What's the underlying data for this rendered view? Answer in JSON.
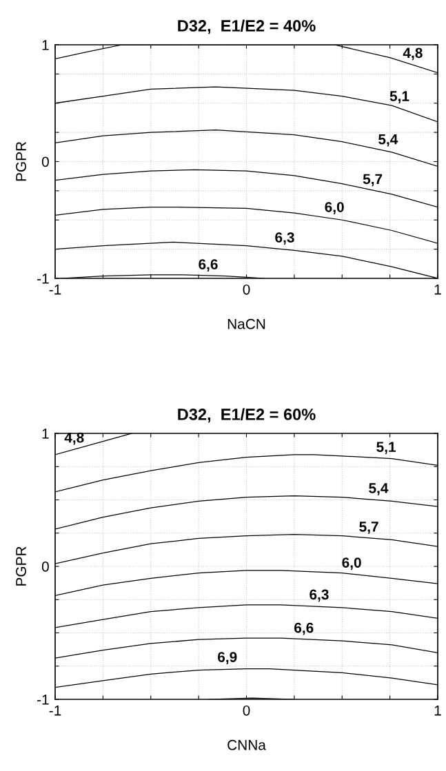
{
  "chart_data": [
    {
      "type": "line",
      "title": "D32,  E1/E2 = 40%",
      "xlabel": "NaCN",
      "ylabel": "PGPR",
      "xlim": [
        -1,
        1
      ],
      "ylim": [
        -1,
        1
      ],
      "xticks": [
        -1,
        {
          "value": -0.75,
          "label": null
        },
        {
          "value": -0.5,
          "label": null
        },
        {
          "value": -0.25,
          "label": null
        },
        0,
        {
          "value": 0.25,
          "label": null
        },
        {
          "value": 0.5,
          "label": null
        },
        {
          "value": 0.75,
          "label": null
        },
        1
      ],
      "yticks": [
        -1,
        {
          "value": -0.75,
          "label": null
        },
        {
          "value": -0.5,
          "label": null
        },
        {
          "value": -0.25,
          "label": null
        },
        0,
        {
          "value": 0.25,
          "label": null
        },
        {
          "value": 0.5,
          "label": null
        },
        {
          "value": 0.75,
          "label": null
        },
        1
      ],
      "grid": true,
      "legend": false,
      "marker": "none",
      "line_style": "solid",
      "series": [
        {
          "color": "#000000",
          "x": [
            -1,
            -0.83,
            -0.65,
            0.46,
            0.75,
            1
          ],
          "values": [
            0.88,
            0.94,
            1,
            1,
            0.89,
            0.76
          ]
        },
        {
          "color": "#000000",
          "x": [
            -1,
            -0.75,
            -0.5,
            -0.16,
            0.25,
            0.5,
            0.76,
            1
          ],
          "values": [
            0.5,
            0.56,
            0.62,
            0.64,
            0.61,
            0.56,
            0.48,
            0.34
          ]
        },
        {
          "color": "#000000",
          "x": [
            -1,
            -0.75,
            -0.5,
            -0.16,
            0.25,
            0.5,
            0.76,
            1
          ],
          "values": [
            0.16,
            0.22,
            0.25,
            0.27,
            0.23,
            0.17,
            0.08,
            -0.04
          ]
        },
        {
          "color": "#000000",
          "x": [
            -1,
            -0.75,
            -0.5,
            -0.27,
            0,
            0.25,
            0.5,
            0.76,
            1
          ],
          "values": [
            -0.16,
            -0.11,
            -0.08,
            -0.07,
            -0.08,
            -0.12,
            -0.19,
            -0.28,
            -0.39
          ]
        },
        {
          "color": "#000000",
          "x": [
            -1,
            -0.75,
            -0.5,
            -0.36,
            0,
            0.25,
            0.5,
            0.76,
            1
          ],
          "values": [
            -0.46,
            -0.41,
            -0.39,
            -0.39,
            -0.4,
            -0.44,
            -0.5,
            -0.59,
            -0.7
          ]
        },
        {
          "color": "#000000",
          "x": [
            -1,
            -0.75,
            -0.38,
            0,
            0.25,
            0.5,
            0.76,
            1
          ],
          "values": [
            -0.75,
            -0.72,
            -0.69,
            -0.72,
            -0.76,
            -0.81,
            -0.9,
            -1
          ]
        },
        {
          "color": "#000000",
          "x": [
            -0.97,
            -0.75,
            -0.5,
            -0.33,
            -0.11,
            0,
            0.09
          ],
          "values": [
            -1,
            -0.98,
            -0.97,
            -0.97,
            -0.98,
            -0.99,
            -1
          ]
        }
      ],
      "annotations": [
        {
          "text": "4,8",
          "x": 0.87,
          "y": 0.83
        },
        {
          "text": "5,1",
          "x": 0.8,
          "y": 0.46
        },
        {
          "text": "5,4",
          "x": 0.74,
          "y": 0.09
        },
        {
          "text": "5,7",
          "x": 0.66,
          "y": -0.25
        },
        {
          "text": "6,0",
          "x": 0.46,
          "y": -0.49
        },
        {
          "text": "6,3",
          "x": 0.2,
          "y": -0.75
        },
        {
          "text": "6,6",
          "x": -0.2,
          "y": -0.98
        }
      ]
    },
    {
      "type": "line",
      "title": "D32,  E1/E2 = 60%",
      "xlabel": "CNNa",
      "ylabel": "PGPR",
      "xlim": [
        -1,
        1
      ],
      "ylim": [
        -1,
        1
      ],
      "xticks": [
        -1,
        {
          "value": -0.75,
          "label": null
        },
        {
          "value": -0.5,
          "label": null
        },
        {
          "value": -0.25,
          "label": null
        },
        0,
        {
          "value": 0.25,
          "label": null
        },
        {
          "value": 0.5,
          "label": null
        },
        {
          "value": 0.75,
          "label": null
        },
        1
      ],
      "yticks": [
        -1,
        {
          "value": -0.75,
          "label": null
        },
        {
          "value": -0.5,
          "label": null
        },
        {
          "value": -0.25,
          "label": null
        },
        0,
        {
          "value": 0.25,
          "label": null
        },
        {
          "value": 0.5,
          "label": null
        },
        {
          "value": 0.75,
          "label": null
        },
        1
      ],
      "grid": true,
      "legend": false,
      "marker": "none",
      "line_style": "solid",
      "series": [
        {
          "color": "#000000",
          "x": [
            -1,
            -0.75,
            -0.6
          ],
          "values": [
            0.84,
            0.94,
            1
          ]
        },
        {
          "color": "#000000",
          "x": [
            -1,
            -0.75,
            -0.5,
            -0.25,
            0,
            0.25,
            0.35,
            0.5,
            0.76,
            1
          ],
          "values": [
            0.56,
            0.65,
            0.72,
            0.78,
            0.82,
            0.84,
            0.84,
            0.83,
            0.81,
            0.76
          ]
        },
        {
          "color": "#000000",
          "x": [
            -1,
            -0.75,
            -0.5,
            -0.25,
            0,
            0.25,
            0.5,
            0.76,
            1
          ],
          "values": [
            0.28,
            0.37,
            0.44,
            0.49,
            0.52,
            0.53,
            0.52,
            0.49,
            0.45
          ]
        },
        {
          "color": "#000000",
          "x": [
            -1,
            -0.75,
            -0.5,
            -0.25,
            0,
            0.25,
            0.5,
            0.76,
            1
          ],
          "values": [
            0.02,
            0.1,
            0.17,
            0.21,
            0.23,
            0.24,
            0.23,
            0.2,
            0.15
          ]
        },
        {
          "color": "#000000",
          "x": [
            -1,
            -0.75,
            -0.5,
            -0.25,
            0,
            0.18,
            0.5,
            0.76,
            1
          ],
          "values": [
            -0.22,
            -0.14,
            -0.09,
            -0.05,
            -0.03,
            -0.03,
            -0.05,
            -0.09,
            -0.13
          ]
        },
        {
          "color": "#000000",
          "x": [
            -1,
            -0.75,
            -0.5,
            -0.25,
            0,
            0.18,
            0.5,
            0.76,
            1
          ],
          "values": [
            -0.46,
            -0.4,
            -0.34,
            -0.31,
            -0.29,
            -0.29,
            -0.31,
            -0.34,
            -0.39
          ]
        },
        {
          "color": "#000000",
          "x": [
            -1,
            -0.75,
            -0.5,
            -0.25,
            0,
            0.18,
            0.5,
            0.76,
            1
          ],
          "values": [
            -0.69,
            -0.63,
            -0.58,
            -0.55,
            -0.54,
            -0.54,
            -0.56,
            -0.59,
            -0.65
          ]
        },
        {
          "color": "#000000",
          "x": [
            -1,
            -0.75,
            -0.5,
            -0.25,
            0,
            0.12,
            0.25,
            0.5,
            0.76,
            1
          ],
          "values": [
            -0.91,
            -0.86,
            -0.81,
            -0.78,
            -0.77,
            -0.77,
            -0.78,
            -0.8,
            -0.84,
            -0.89
          ]
        },
        {
          "color": "#000000",
          "x": [
            -0.2,
            0.03,
            0.25
          ],
          "values": [
            -1,
            -0.99,
            -1
          ]
        }
      ],
      "annotations": [
        {
          "text": "4,8",
          "x": -0.9,
          "y": 0.88
        },
        {
          "text": "5,1",
          "x": 0.73,
          "y": 0.81
        },
        {
          "text": "5,4",
          "x": 0.69,
          "y": 0.5
        },
        {
          "text": "5,7",
          "x": 0.64,
          "y": 0.21
        },
        {
          "text": "6,0",
          "x": 0.55,
          "y": -0.06
        },
        {
          "text": "6,3",
          "x": 0.38,
          "y": -0.3
        },
        {
          "text": "6,6",
          "x": 0.3,
          "y": -0.55
        },
        {
          "text": "6,9",
          "x": -0.1,
          "y": -0.77
        }
      ]
    }
  ]
}
